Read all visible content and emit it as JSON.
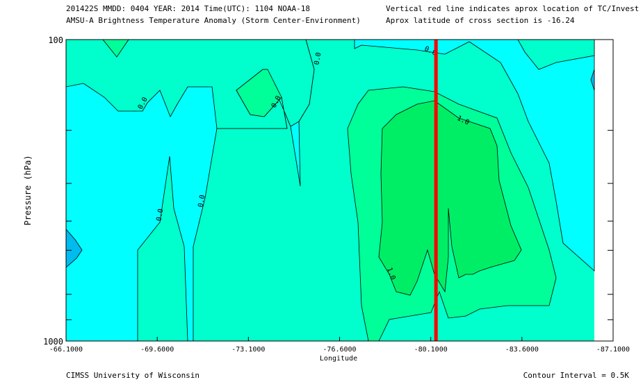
{
  "header": {
    "line1": "201422S  MMDD: 0404 YEAR: 2014 Time(UTC): 1104 NOAA-18",
    "line2": "AMSU-A Brightness Temperature Anomaly (Storm Center-Environment)",
    "note1": "Vertical red line indicates aprox location of TC/Invest",
    "note2": "Aprox latitude of cross section is -16.24"
  },
  "footer": {
    "credit": "CIMSS University of Wisconsin",
    "contour_interval": "Contour Interval = 0.5K"
  },
  "colors": {
    "cyan": "#00ffff",
    "aqua_green": "#00ffcc",
    "spring_green": "#00ff99",
    "green": "#00ee66",
    "blue": "#00bbee",
    "marker": "#ff0000"
  },
  "chart_data": {
    "type": "contour",
    "xlabel": "Longitude",
    "ylabel": "Pressure (hPa)",
    "x_ticks": [
      "-66.1000",
      "-69.6000",
      "-73.1000",
      "-76.6000",
      "-80.1000",
      "-83.6000",
      "-87.1000"
    ],
    "x_tick_values": [
      -66.1,
      -69.6,
      -73.1,
      -76.6,
      -80.1,
      -83.6,
      -87.1
    ],
    "xlim": [
      -66.1,
      -87.1
    ],
    "y_ticks": [
      "100",
      "1000"
    ],
    "ylim": [
      1000,
      100
    ],
    "y_scale": "log",
    "y_minor_tick_values": [
      200,
      300,
      400,
      500,
      700,
      850
    ],
    "contour_interval": 0.5,
    "contour_labels": [
      "0.0",
      "0.0",
      "0.0",
      "0.0",
      "0.0",
      "0.0",
      "1.0",
      "1.0"
    ],
    "storm_longitude": -80.3
  }
}
